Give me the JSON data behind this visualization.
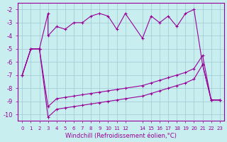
{
  "xlabel": "Windchill (Refroidissement éolien,°C)",
  "bg_color": "#c8eef0",
  "grid_color": "#a0c8d0",
  "line_color": "#990099",
  "x_ticks": [
    0,
    1,
    2,
    3,
    4,
    5,
    6,
    7,
    8,
    9,
    10,
    11,
    12,
    14,
    15,
    16,
    17,
    18,
    19,
    20,
    21,
    22,
    23
  ],
  "ylim": [
    -10.5,
    -1.5
  ],
  "yticks": [
    -10,
    -9,
    -8,
    -7,
    -6,
    -5,
    -4,
    -3,
    -2
  ],
  "series1_x": [
    0,
    1,
    2,
    3,
    3,
    4,
    5,
    6,
    7,
    8,
    9,
    10,
    11,
    12,
    14,
    15,
    16,
    17,
    18,
    19,
    20,
    21,
    22,
    23
  ],
  "series1_y": [
    -7.0,
    -5.0,
    -5.0,
    -2.3,
    -4.0,
    -3.3,
    -3.5,
    -3.0,
    -3.0,
    -2.5,
    -2.3,
    -2.5,
    -3.5,
    -2.3,
    -4.2,
    -2.5,
    -3.0,
    -2.5,
    -3.3,
    -2.3,
    -2.0,
    -6.2,
    -8.9,
    -8.9
  ],
  "series2_x": [
    0,
    1,
    2,
    3,
    4,
    5,
    6,
    7,
    8,
    9,
    10,
    11,
    12,
    14,
    15,
    16,
    17,
    18,
    19,
    20,
    21,
    22,
    23
  ],
  "series2_y": [
    -7.0,
    -5.0,
    -5.0,
    -9.4,
    -8.8,
    -8.7,
    -8.6,
    -8.5,
    -8.4,
    -8.3,
    -8.2,
    -8.1,
    -8.0,
    -7.8,
    -7.6,
    -7.4,
    -7.2,
    -7.0,
    -6.8,
    -6.5,
    -5.5,
    -8.9,
    -8.9
  ],
  "series3_x": [
    0,
    1,
    2,
    3,
    4,
    5,
    6,
    7,
    8,
    9,
    10,
    11,
    12,
    14,
    15,
    16,
    17,
    18,
    19,
    20,
    21,
    22,
    23
  ],
  "series3_y": [
    -7.0,
    -5.0,
    -5.0,
    -10.2,
    -9.6,
    -9.5,
    -9.4,
    -9.3,
    -9.2,
    -9.1,
    -9.0,
    -8.9,
    -8.8,
    -8.6,
    -8.4,
    -8.2,
    -8.0,
    -7.8,
    -7.6,
    -7.3,
    -6.2,
    -8.9,
    -8.9
  ]
}
